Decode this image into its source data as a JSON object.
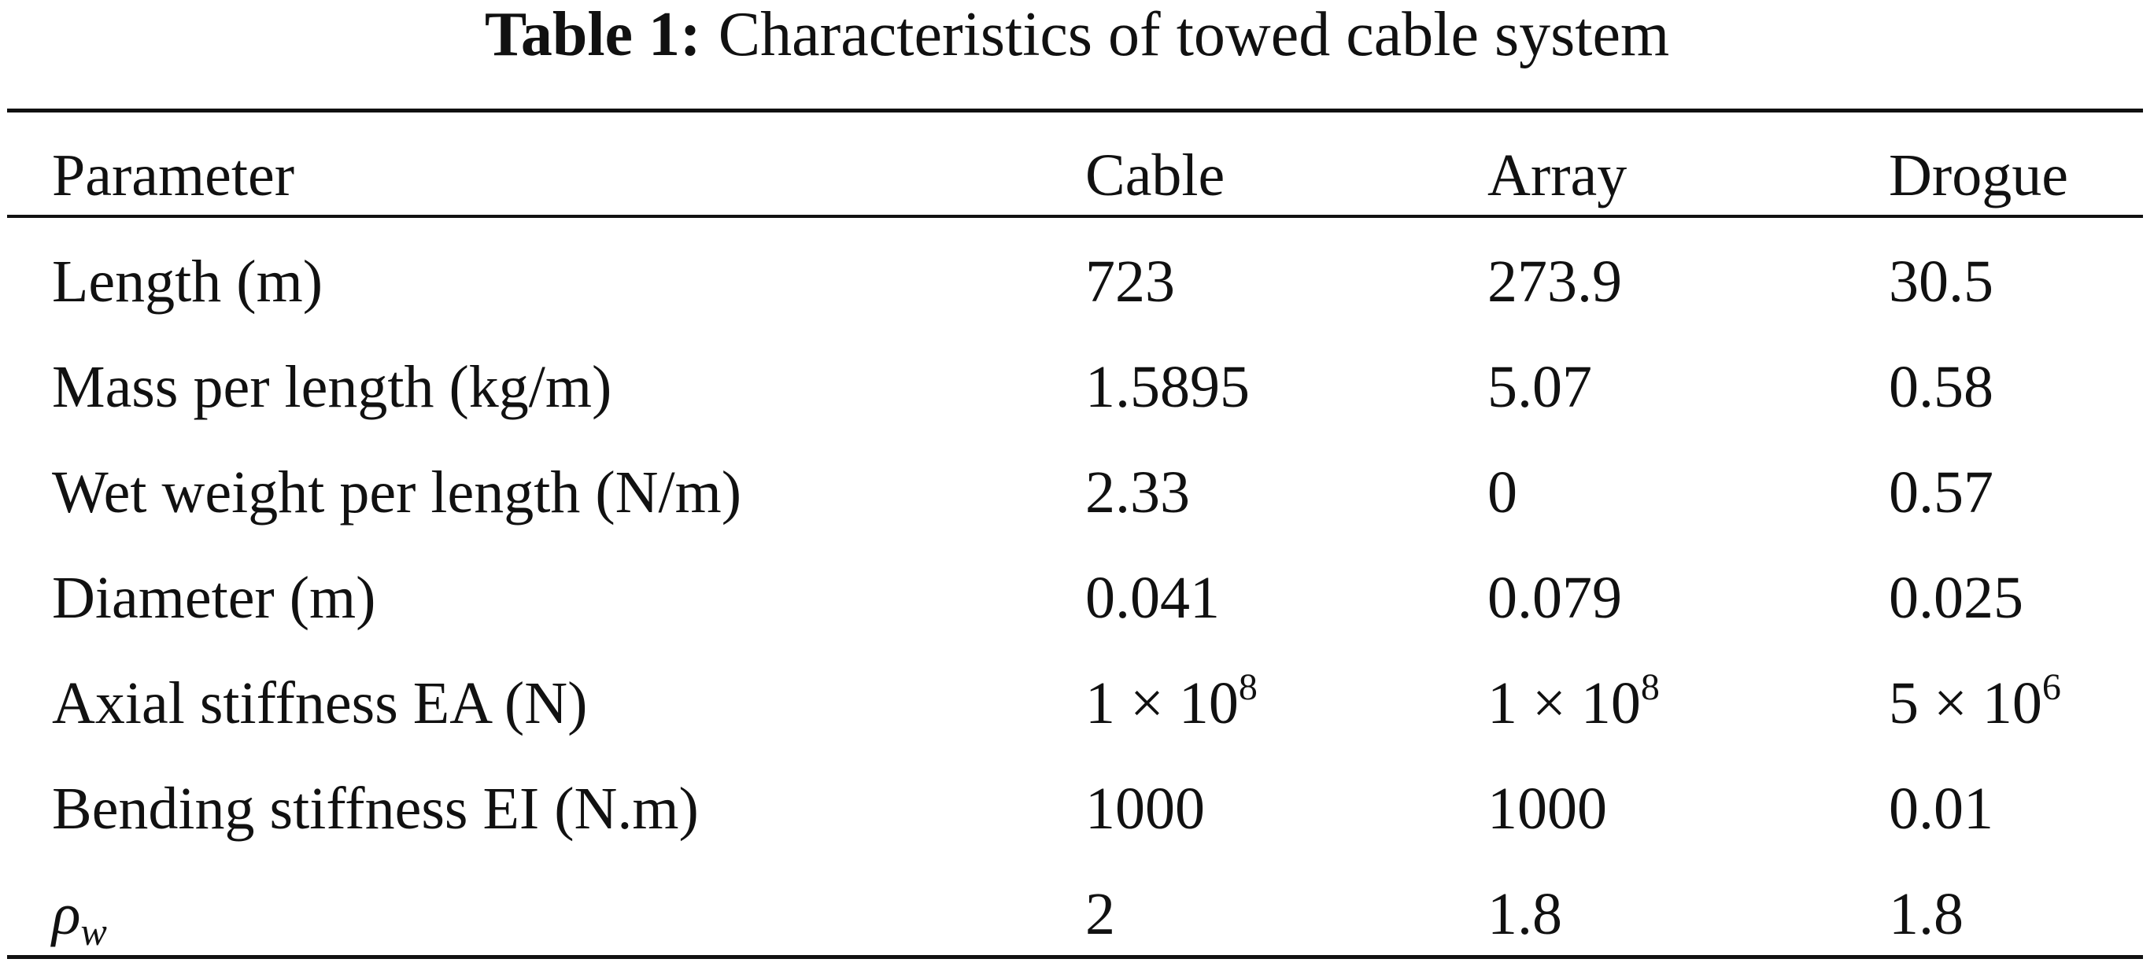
{
  "caption": {
    "label": "Table 1:",
    "text": "Characteristics of towed cable system"
  },
  "table": {
    "header": [
      "Parameter",
      "Cable",
      "Array",
      "Drogue"
    ],
    "rows": [
      [
        "Length (m)",
        "723",
        "273.9",
        "30.5"
      ],
      [
        "Mass per length (kg/m)",
        "1.5895",
        "5.07",
        "0.58"
      ],
      [
        "Wet weight per length (N/m)",
        "2.33",
        "0",
        "0.57"
      ],
      [
        "Diameter (m)",
        "0.041",
        "0.079",
        "0.025"
      ],
      [
        "Axial stiffness EA (N)",
        {
          "text": "1 × 10",
          "sup": "8"
        },
        {
          "text": "1 × 10",
          "sup": "8"
        },
        {
          "text": "5 × 10",
          "sup": "6"
        }
      ],
      [
        "Bending stiffness EI (N.m)",
        "1000",
        "1000",
        "0.01"
      ],
      [
        {
          "text": "ρ",
          "sub": "w"
        },
        "2",
        "1.8",
        "1.8"
      ]
    ]
  }
}
